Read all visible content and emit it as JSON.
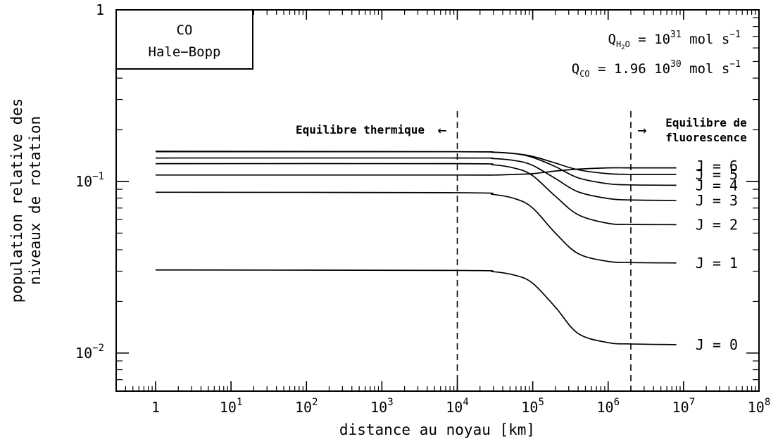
{
  "chart_data": {
    "type": "line",
    "xlabel": "distance au noyau [km]",
    "ylabel_lines": [
      "population relative des",
      "niveaux de rotation"
    ],
    "xscale": "log",
    "yscale": "log",
    "xlim": [
      0.3,
      100000000
    ],
    "ylim": [
      0.006,
      1
    ],
    "x_ticks": [
      {
        "value": 1,
        "base": "1",
        "exp": ""
      },
      {
        "value": 10,
        "base": "10",
        "exp": "1"
      },
      {
        "value": 100,
        "base": "10",
        "exp": "2"
      },
      {
        "value": 1000,
        "base": "10",
        "exp": "3"
      },
      {
        "value": 10000,
        "base": "10",
        "exp": "4"
      },
      {
        "value": 100000,
        "base": "10",
        "exp": "5"
      },
      {
        "value": 1000000,
        "base": "10",
        "exp": "6"
      },
      {
        "value": 10000000,
        "base": "10",
        "exp": "7"
      },
      {
        "value": 100000000,
        "base": "10",
        "exp": "8"
      }
    ],
    "y_ticks": [
      {
        "value": 1,
        "base": "1",
        "exp": ""
      },
      {
        "value": 0.1,
        "base": "10",
        "exp": "−1"
      },
      {
        "value": 0.01,
        "base": "10",
        "exp": "−2"
      }
    ],
    "series": [
      {
        "name": "J = 0",
        "label_value": 0.0112,
        "x": [
          1,
          10000,
          30000,
          60000,
          100000,
          200000,
          400000,
          1000000,
          2000000,
          8000000
        ],
        "y": [
          0.0305,
          0.0303,
          0.0298,
          0.0283,
          0.0255,
          0.0185,
          0.013,
          0.0115,
          0.0113,
          0.0112
        ]
      },
      {
        "name": "J = 1",
        "label_value": 0.0335,
        "x": [
          1,
          10000,
          30000,
          60000,
          100000,
          200000,
          400000,
          1000000,
          2000000,
          8000000
        ],
        "y": [
          0.0865,
          0.086,
          0.084,
          0.079,
          0.07,
          0.05,
          0.038,
          0.0342,
          0.0337,
          0.0335
        ]
      },
      {
        "name": "J = 2",
        "label_value": 0.056,
        "x": [
          1,
          10000,
          30000,
          60000,
          100000,
          200000,
          400000,
          1000000,
          2000000,
          8000000
        ],
        "y": [
          0.127,
          0.127,
          0.125,
          0.119,
          0.108,
          0.082,
          0.064,
          0.057,
          0.0562,
          0.056
        ]
      },
      {
        "name": "J = 3",
        "label_value": 0.0775,
        "x": [
          1,
          10000,
          30000,
          60000,
          100000,
          200000,
          400000,
          1000000,
          2000000,
          8000000
        ],
        "y": [
          0.137,
          0.137,
          0.136,
          0.132,
          0.124,
          0.104,
          0.087,
          0.0795,
          0.078,
          0.0775
        ]
      },
      {
        "name": "J = 4",
        "label_value": 0.095,
        "x": [
          1,
          10000,
          30000,
          60000,
          100000,
          200000,
          400000,
          1000000,
          2000000,
          8000000
        ],
        "y": [
          0.149,
          0.149,
          0.148,
          0.145,
          0.138,
          0.122,
          0.105,
          0.097,
          0.0955,
          0.095
        ]
      },
      {
        "name": "J = 5",
        "label_value": 0.11,
        "x": [
          1,
          10000,
          30000,
          60000,
          100000,
          200000,
          400000,
          1000000,
          2000000,
          8000000
        ],
        "y": [
          0.15,
          0.149,
          0.148,
          0.145,
          0.14,
          0.128,
          0.117,
          0.111,
          0.11,
          0.11
        ]
      },
      {
        "name": "J = 6",
        "label_value": 0.12,
        "x": [
          1,
          10000,
          30000,
          60000,
          100000,
          200000,
          400000,
          1000000,
          2000000,
          8000000
        ],
        "y": [
          0.109,
          0.109,
          0.109,
          0.11,
          0.111,
          0.115,
          0.118,
          0.12,
          0.12,
          0.12
        ]
      }
    ],
    "vlines": [
      {
        "name": "thermal-boundary",
        "x": 10000
      },
      {
        "name": "fluorescence-boundary",
        "x": 2000000
      }
    ],
    "annotations": {
      "thermal": {
        "text": "Equilibre thermique",
        "arrow": "←"
      },
      "fluorescence": {
        "line1": "Equilibre de",
        "line2": "fluorescence",
        "arrow": "→"
      }
    },
    "legend_box": {
      "line1": "CO",
      "line2": "Hale−Bopp"
    },
    "formulas": {
      "q_h2o": {
        "Q": "Q",
        "sub": "H",
        "sub2": "2",
        "sub3": "O",
        "eq": " = 10",
        "exp": "31",
        "unit": " mol s",
        "unit_exp": "−1"
      },
      "q_co": {
        "Q": "Q",
        "sub": "CO",
        "eq": " = 1.96 10",
        "exp": "30",
        "unit": " mol s",
        "unit_exp": "−1"
      }
    }
  }
}
